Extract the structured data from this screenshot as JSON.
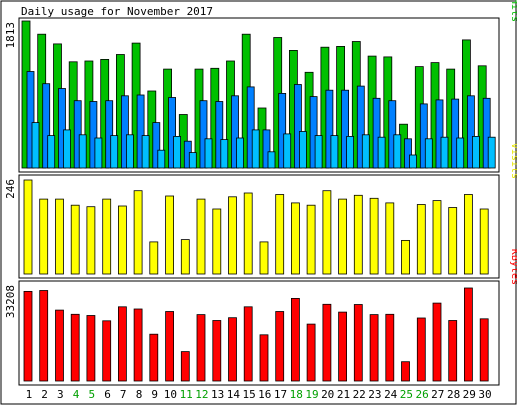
{
  "chart_data": {
    "type": "bar",
    "title": "Daily usage for November 2017",
    "categories": [
      "1",
      "2",
      "3",
      "4",
      "5",
      "6",
      "7",
      "8",
      "9",
      "10",
      "11",
      "12",
      "13",
      "14",
      "15",
      "16",
      "17",
      "18",
      "19",
      "20",
      "21",
      "22",
      "23",
      "24",
      "25",
      "26",
      "27",
      "28",
      "29",
      "30"
    ],
    "weekend_days": [
      "4",
      "5",
      "11",
      "12",
      "18",
      "19",
      "25",
      "26"
    ],
    "panels": [
      {
        "id": "hits",
        "label_parts": [
          {
            "text": "Pages",
            "color": "#00bfff"
          },
          {
            "text": "/",
            "color": "#000000"
          },
          {
            "text": "Files",
            "color": "#0080ff"
          },
          {
            "text": "/",
            "color": "#000000"
          },
          {
            "text": "Hits",
            "color": "#00c000"
          }
        ],
        "max_label": "1813",
        "ylim": [
          0,
          1813
        ],
        "series": [
          {
            "name": "Hits",
            "color": "#00c000",
            "values": [
              1813,
              1650,
              1530,
              1310,
              1320,
              1340,
              1400,
              1540,
              950,
              1220,
              660,
              1220,
              1230,
              1320,
              1650,
              740,
              1610,
              1450,
              1180,
              1490,
              1500,
              1560,
              1380,
              1370,
              540,
              1250,
              1300,
              1220,
              1580,
              1260
            ]
          },
          {
            "name": "Files",
            "color": "#0080ff",
            "values": [
              1190,
              1040,
              980,
              830,
              820,
              830,
              890,
              900,
              560,
              870,
              330,
              830,
              820,
              890,
              1000,
              470,
              920,
              1030,
              880,
              960,
              960,
              1010,
              860,
              830,
              360,
              790,
              840,
              850,
              890,
              860
            ]
          },
          {
            "name": "Pages",
            "color": "#00bfff",
            "values": [
              560,
              400,
              470,
              410,
              370,
              400,
              410,
              400,
              220,
              390,
              190,
              360,
              350,
              370,
              470,
              200,
              420,
              450,
              400,
              400,
              390,
              410,
              380,
              410,
              160,
              360,
              380,
              370,
              390,
              380
            ]
          }
        ]
      },
      {
        "id": "visits",
        "label_parts": [
          {
            "text": "Visits",
            "color": "#e6e600"
          }
        ],
        "max_label": "246",
        "ylim": [
          0,
          246
        ],
        "series": [
          {
            "name": "Visits",
            "color": "#ffff00",
            "values": [
              246,
              196,
              196,
              180,
              176,
              196,
              178,
              218,
              84,
              204,
              90,
              196,
              170,
              202,
              212,
              84,
              208,
              186,
              180,
              218,
              196,
              206,
              198,
              186,
              88,
              182,
              192,
              174,
              208,
              170
            ]
          }
        ]
      },
      {
        "id": "kbytes",
        "label_parts": [
          {
            "text": "KBytes",
            "color": "#ff0000"
          }
        ],
        "max_label": "33208",
        "ylim": [
          0,
          33208
        ],
        "series": [
          {
            "name": "KBytes",
            "color": "#ff0000",
            "values": [
              32000,
              32300,
              25300,
              23800,
              23400,
              21500,
              26500,
              25700,
              16700,
              24800,
              10500,
              23700,
              21600,
              22600,
              26500,
              16500,
              24800,
              29500,
              20300,
              27400,
              24600,
              27300,
              23700,
              23800,
              6900,
              22500,
              27800,
              21600,
              33208,
              22200
            ]
          }
        ]
      }
    ]
  }
}
